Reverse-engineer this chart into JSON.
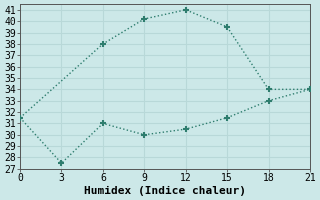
{
  "xlabel": "Humidex (Indice chaleur)",
  "background_color": "#cce8e8",
  "grid_color": "#b0d8d8",
  "line_color": "#2e7d6e",
  "series1_x": [
    0,
    3,
    6,
    9,
    12,
    15,
    18,
    21
  ],
  "series1_y": [
    31.5,
    27.5,
    31.0,
    30.0,
    30.5,
    31.5,
    33.0,
    34.0
  ],
  "series2_x": [
    0,
    6,
    9,
    12,
    15,
    18,
    21
  ],
  "series2_y": [
    31.5,
    38.0,
    40.2,
    41.0,
    39.5,
    34.0,
    34.0
  ],
  "xlim": [
    0,
    21
  ],
  "ylim": [
    27,
    41.5
  ],
  "xticks": [
    0,
    3,
    6,
    9,
    12,
    15,
    18,
    21
  ],
  "yticks": [
    27,
    28,
    29,
    30,
    31,
    32,
    33,
    34,
    35,
    36,
    37,
    38,
    39,
    40,
    41
  ],
  "marker": "+",
  "markersize": 5,
  "markeredgewidth": 1.5,
  "linewidth": 1.0,
  "font_family": "monospace",
  "xlabel_fontsize": 8,
  "tick_fontsize": 7
}
